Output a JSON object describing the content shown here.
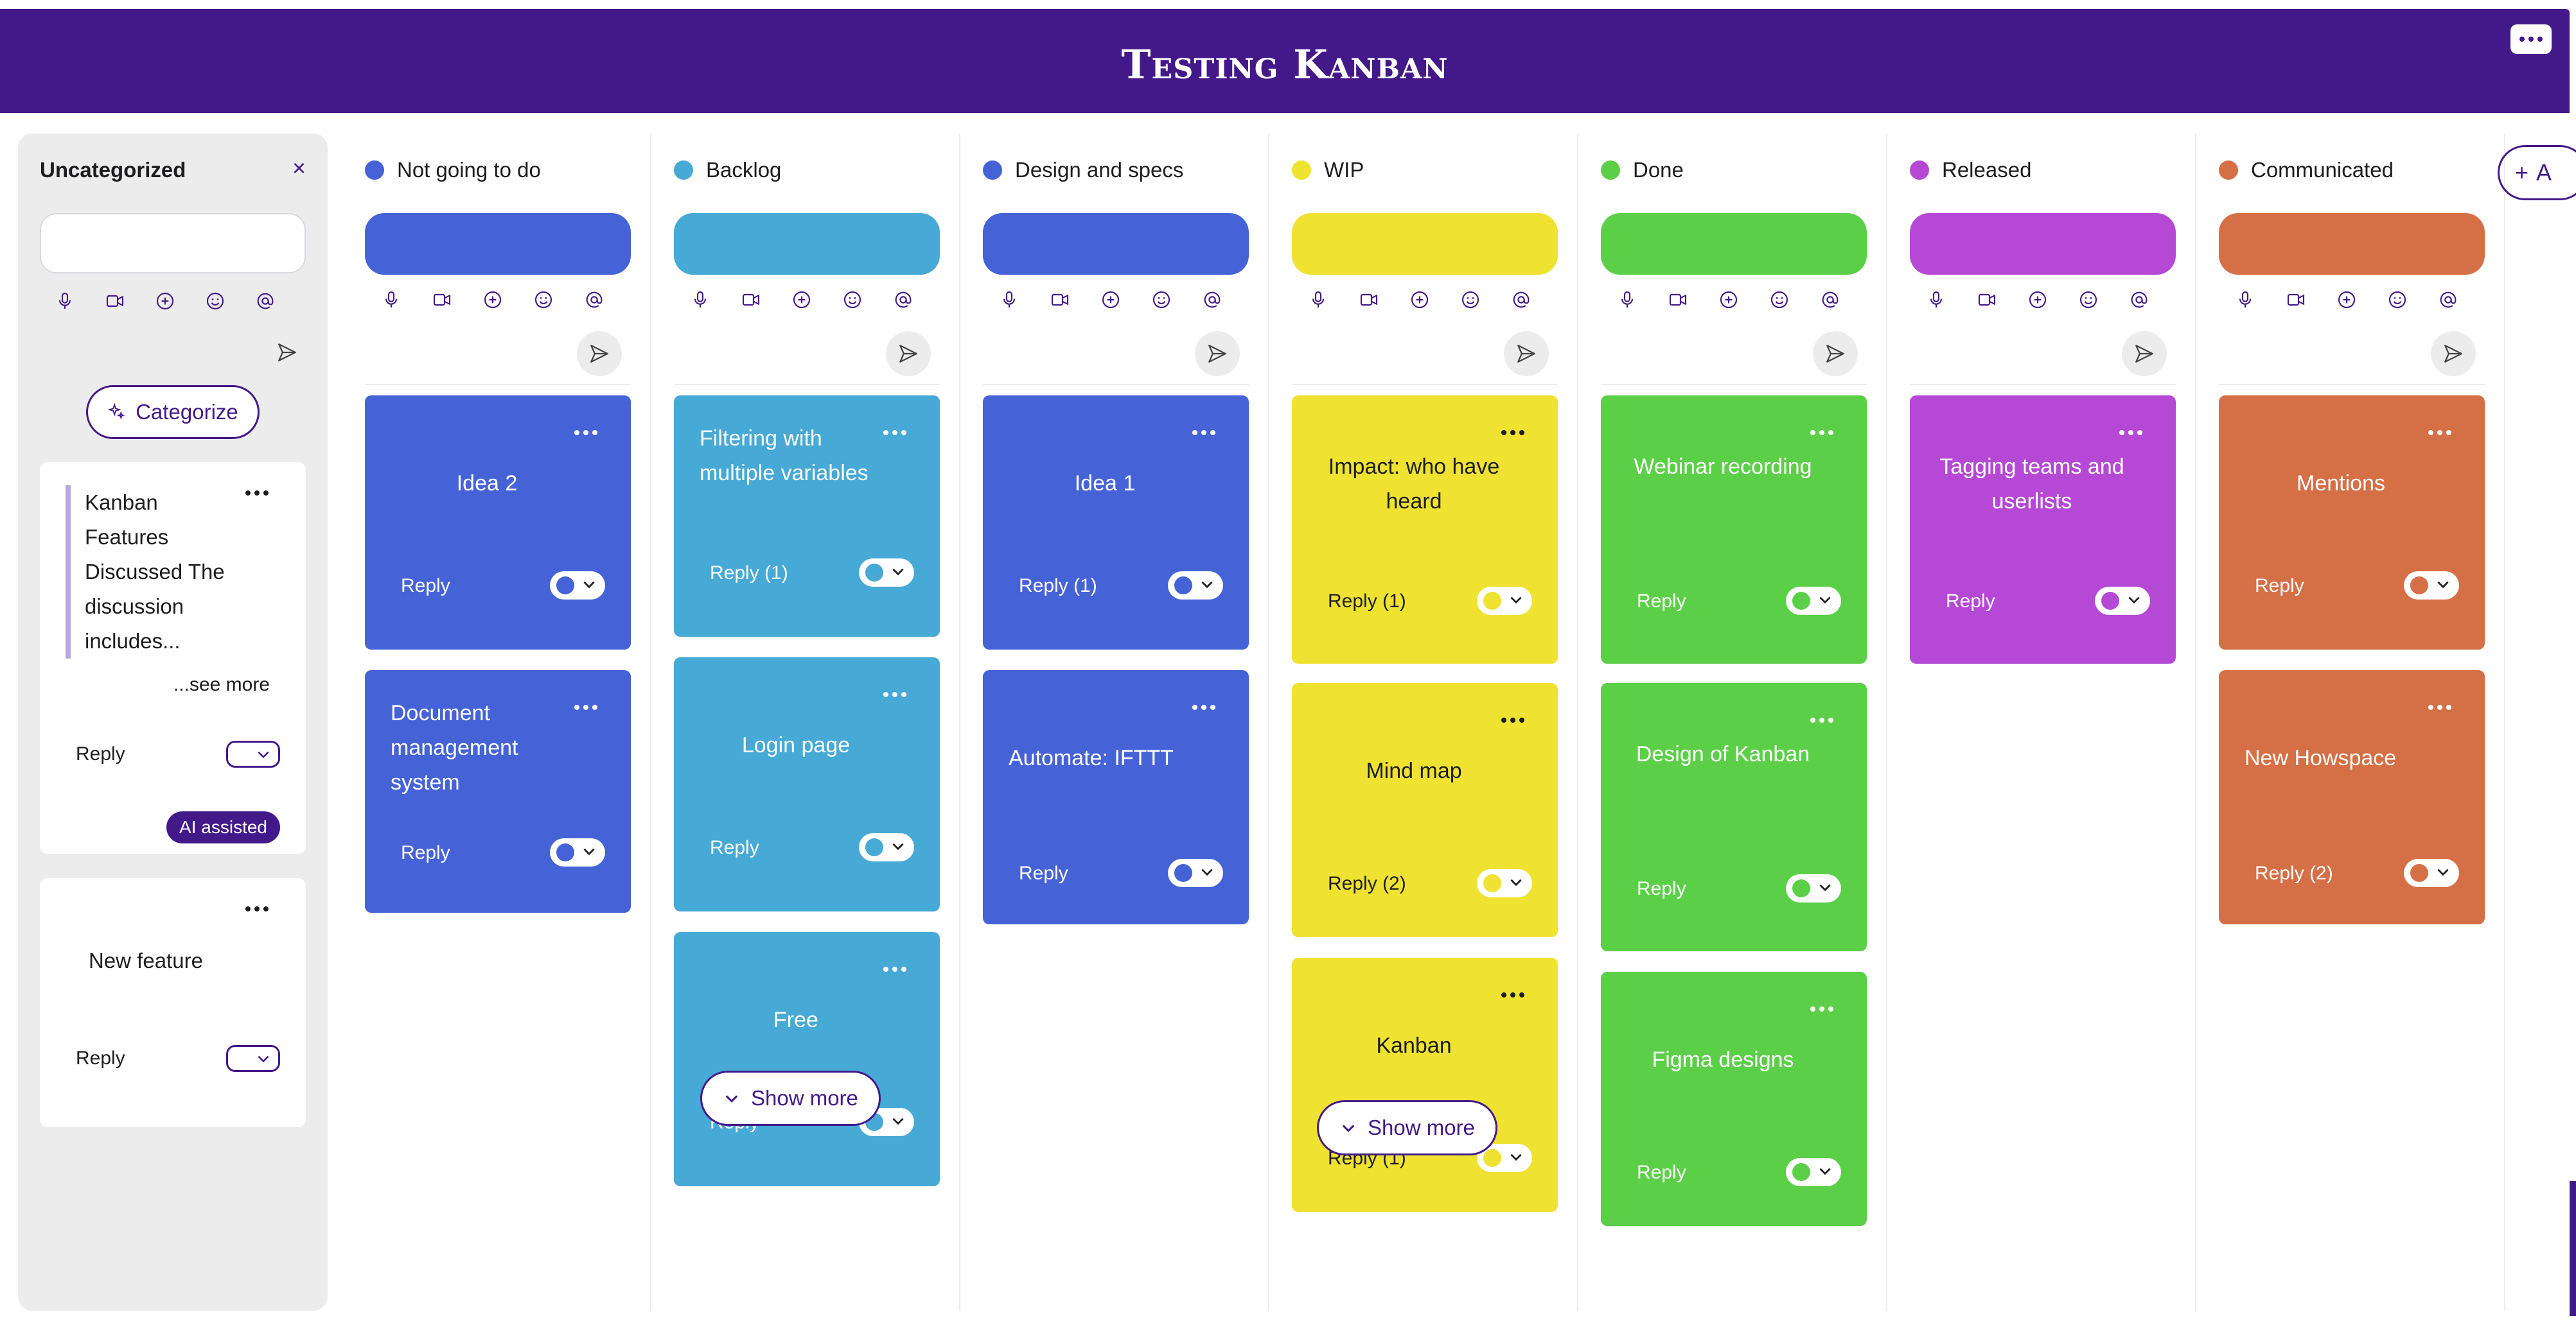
{
  "header": {
    "title": "Testing Kanban"
  },
  "uncategorized": {
    "title": "Uncategorized",
    "categorize_label": "Categorize",
    "cards": [
      {
        "text": "Kanban Features Discussed The discussion includes...",
        "see_more": "...see more",
        "reply": "Reply",
        "badge": "AI assisted"
      },
      {
        "text": "New feature",
        "reply": "Reply"
      }
    ]
  },
  "columns": [
    {
      "name": "Not going to do",
      "color": "#4563d6",
      "cards": [
        {
          "title": "Idea 2",
          "reply": "Reply"
        },
        {
          "title": "Document management system",
          "reply": "Reply"
        }
      ]
    },
    {
      "name": "Backlog",
      "color": "#47a9d5",
      "cards": [
        {
          "title": "Filtering with multiple variables",
          "reply": "Reply (1)"
        },
        {
          "title": "Login page",
          "reply": "Reply"
        },
        {
          "title": "Free",
          "reply": "Reply"
        }
      ],
      "show_more": "Show more"
    },
    {
      "name": "Design and specs",
      "color": "#4563d6",
      "cards": [
        {
          "title": "Idea 1",
          "reply": "Reply (1)"
        },
        {
          "title": "Automate: IFTTT",
          "reply": "Reply"
        }
      ]
    },
    {
      "name": "WIP",
      "color": "#efe231",
      "cards": [
        {
          "title": "Impact: who have heard",
          "reply": "Reply (1)"
        },
        {
          "title": "Mind map",
          "reply": "Reply (2)"
        },
        {
          "title": "Kanban",
          "reply": "Reply (1)"
        }
      ],
      "show_more": "Show more"
    },
    {
      "name": "Done",
      "color": "#5ccf48",
      "cards": [
        {
          "title": "Webinar recording",
          "reply": "Reply"
        },
        {
          "title": "Design of Kanban",
          "reply": "Reply"
        },
        {
          "title": "Figma designs",
          "reply": "Reply"
        }
      ]
    },
    {
      "name": "Released",
      "color": "#b548d4",
      "cards": [
        {
          "title": "Tagging teams and userlists",
          "reply": "Reply"
        }
      ]
    },
    {
      "name": "Communicated",
      "color": "#d56f45",
      "cards": [
        {
          "title": "Mentions",
          "reply": "Reply"
        },
        {
          "title": "New Howspace",
          "reply": "Reply (2)"
        }
      ]
    }
  ],
  "add_column_label": "A",
  "icons": [
    "microphone-icon",
    "video-icon",
    "plus-circle-icon",
    "emoji-icon",
    "mention-icon",
    "send-icon",
    "more-icon",
    "chevron-down-icon",
    "close-icon",
    "sparkle-icon"
  ]
}
